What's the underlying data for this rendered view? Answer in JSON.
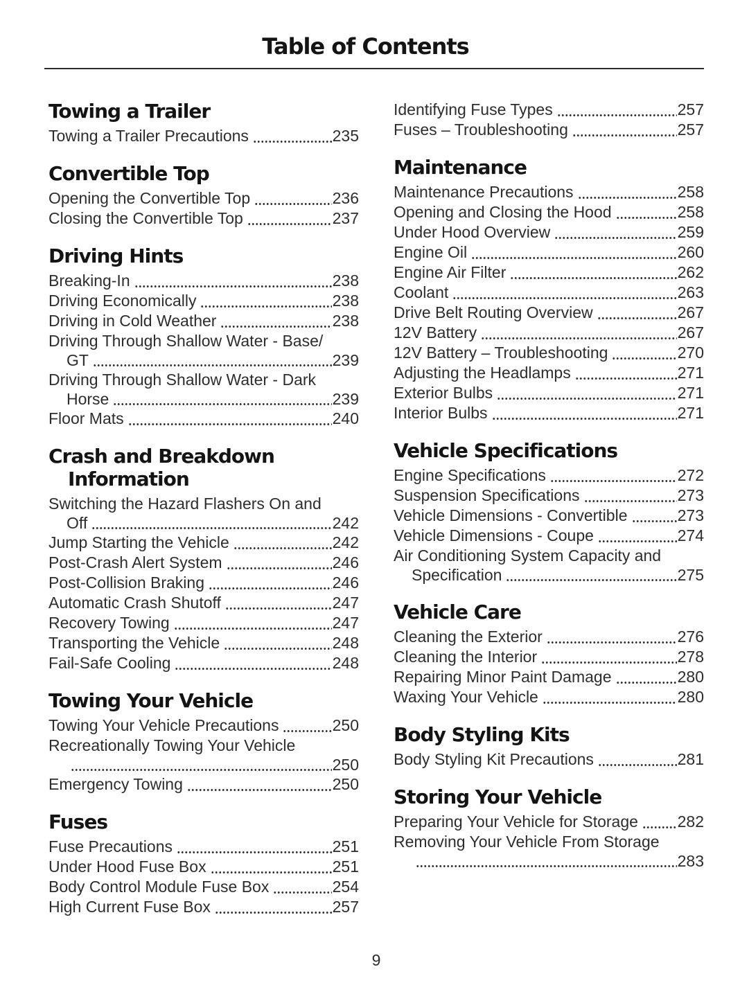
{
  "page": {
    "title": "Table of Contents",
    "number": "9"
  },
  "ink": {
    "heading_color": "#141414",
    "body_color": "#2d2d2d",
    "rule_color": "#2b2b2b",
    "background": "#ffffff"
  },
  "columns": [
    {
      "sections": [
        {
          "heading": "Towing a Trailer",
          "entries": [
            {
              "label": "Towing a Trailer Precautions",
              "page": "235"
            }
          ]
        },
        {
          "heading": "Convertible Top",
          "entries": [
            {
              "label": "Opening the Convertible Top",
              "page": "236"
            },
            {
              "label": "Closing the Convertible Top",
              "page": "237"
            }
          ]
        },
        {
          "heading": "Driving Hints",
          "entries": [
            {
              "label": "Breaking-In",
              "page": "238"
            },
            {
              "label": "Driving Economically",
              "page": "238"
            },
            {
              "label": "Driving in Cold Weather",
              "page": "238"
            },
            {
              "label": "Driving Through Shallow Water - Base/",
              "label2": "GT",
              "page": "239"
            },
            {
              "label": "Driving Through Shallow Water - Dark",
              "label2": "Horse",
              "page": "239"
            },
            {
              "label": "Floor Mats",
              "page": "240"
            }
          ]
        },
        {
          "heading": "Crash and Breakdown",
          "heading2": "Information",
          "entries": [
            {
              "label": "Switching the Hazard Flashers On and",
              "label2": "Off",
              "page": "242"
            },
            {
              "label": "Jump Starting the Vehicle",
              "page": "242"
            },
            {
              "label": "Post-Crash Alert System",
              "page": "246"
            },
            {
              "label": "Post-Collision Braking",
              "page": "246"
            },
            {
              "label": "Automatic Crash Shutoff",
              "page": "247"
            },
            {
              "label": "Recovery Towing",
              "page": "247"
            },
            {
              "label": "Transporting the Vehicle",
              "page": "248"
            },
            {
              "label": "Fail-Safe Cooling",
              "page": "248"
            }
          ]
        },
        {
          "heading": "Towing Your Vehicle",
          "entries": [
            {
              "label": "Towing Your Vehicle Precautions",
              "page": "250"
            },
            {
              "label": "Recreationally Towing Your Vehicle",
              "label2": "",
              "page": "250"
            },
            {
              "label": "Emergency Towing",
              "page": "250"
            }
          ]
        },
        {
          "heading": "Fuses",
          "entries": [
            {
              "label": "Fuse Precautions",
              "page": "251"
            },
            {
              "label": "Under Hood Fuse Box",
              "page": "251"
            },
            {
              "label": "Body Control Module Fuse Box",
              "page": "254"
            },
            {
              "label": "High Current Fuse Box",
              "page": "257"
            }
          ]
        }
      ]
    },
    {
      "sections": [
        {
          "heading": "",
          "entries": [
            {
              "label": "Identifying Fuse Types",
              "page": "257"
            },
            {
              "label": "Fuses – Troubleshooting",
              "page": "257"
            }
          ]
        },
        {
          "heading": "Maintenance",
          "entries": [
            {
              "label": "Maintenance Precautions",
              "page": "258"
            },
            {
              "label": "Opening and Closing the Hood",
              "page": "258"
            },
            {
              "label": "Under Hood Overview",
              "page": "259"
            },
            {
              "label": "Engine Oil",
              "page": "260"
            },
            {
              "label": "Engine Air Filter",
              "page": "262"
            },
            {
              "label": "Coolant",
              "page": "263"
            },
            {
              "label": "Drive Belt Routing Overview",
              "page": "267"
            },
            {
              "label": "12V Battery",
              "page": "267"
            },
            {
              "label": "12V Battery – Troubleshooting",
              "page": "270"
            },
            {
              "label": "Adjusting the Headlamps",
              "page": "271"
            },
            {
              "label": "Exterior Bulbs",
              "page": "271"
            },
            {
              "label": "Interior Bulbs",
              "page": "271"
            }
          ]
        },
        {
          "heading": "Vehicle Specifications",
          "entries": [
            {
              "label": "Engine Specifications",
              "page": "272"
            },
            {
              "label": "Suspension Specifications",
              "page": "273"
            },
            {
              "label": "Vehicle Dimensions - Convertible",
              "page": "273"
            },
            {
              "label": "Vehicle Dimensions - Coupe",
              "page": "274"
            },
            {
              "label": "Air Conditioning System Capacity and",
              "label2": "Specification",
              "page": "275"
            }
          ]
        },
        {
          "heading": "Vehicle Care",
          "entries": [
            {
              "label": "Cleaning the Exterior",
              "page": "276"
            },
            {
              "label": "Cleaning the Interior",
              "page": "278"
            },
            {
              "label": "Repairing Minor Paint Damage",
              "page": "280"
            },
            {
              "label": "Waxing Your Vehicle",
              "page": "280"
            }
          ]
        },
        {
          "heading": "Body Styling Kits",
          "entries": [
            {
              "label": "Body Styling Kit Precautions",
              "page": "281"
            }
          ]
        },
        {
          "heading": "Storing Your Vehicle",
          "entries": [
            {
              "label": "Preparing Your Vehicle for Storage",
              "page": "282"
            },
            {
              "label": "Removing Your Vehicle From Storage",
              "label2": "",
              "page": "283"
            }
          ]
        }
      ]
    }
  ]
}
